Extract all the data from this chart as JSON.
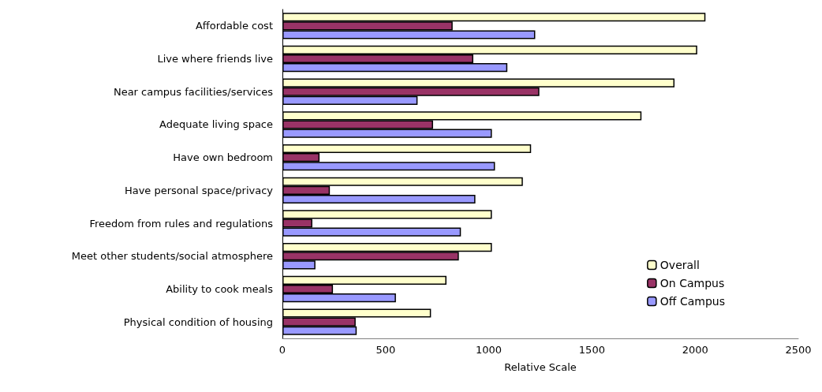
{
  "chart_data": {
    "type": "bar",
    "orientation": "horizontal",
    "xlabel": "Relative Scale",
    "categories": [
      "Affordable cost",
      "Live where friends live",
      "Near campus facilities/services",
      "Adequate living space",
      "Have own bedroom",
      "Have personal space/privacy",
      "Freedom from rules and regulations",
      "Meet other students/social atmosphere",
      "Ability to cook meals",
      "Physical condition of housing"
    ],
    "series": [
      {
        "name": "Overall",
        "color": "#ffffcc",
        "values": [
          2050,
          2010,
          1900,
          1740,
          1205,
          1165,
          1015,
          1015,
          795,
          720
        ]
      },
      {
        "name": "On Campus",
        "color": "#993366",
        "values": [
          825,
          925,
          1245,
          730,
          180,
          230,
          145,
          855,
          245,
          355
        ]
      },
      {
        "name": "Off Campus",
        "color": "#9999ff",
        "values": [
          1225,
          1090,
          655,
          1015,
          1030,
          935,
          865,
          160,
          550,
          360
        ]
      }
    ],
    "xlim": [
      0,
      2500
    ],
    "xticks": [
      0,
      500,
      1000,
      1500,
      2000,
      2500
    ],
    "grid": false,
    "legend": "bottom right"
  }
}
